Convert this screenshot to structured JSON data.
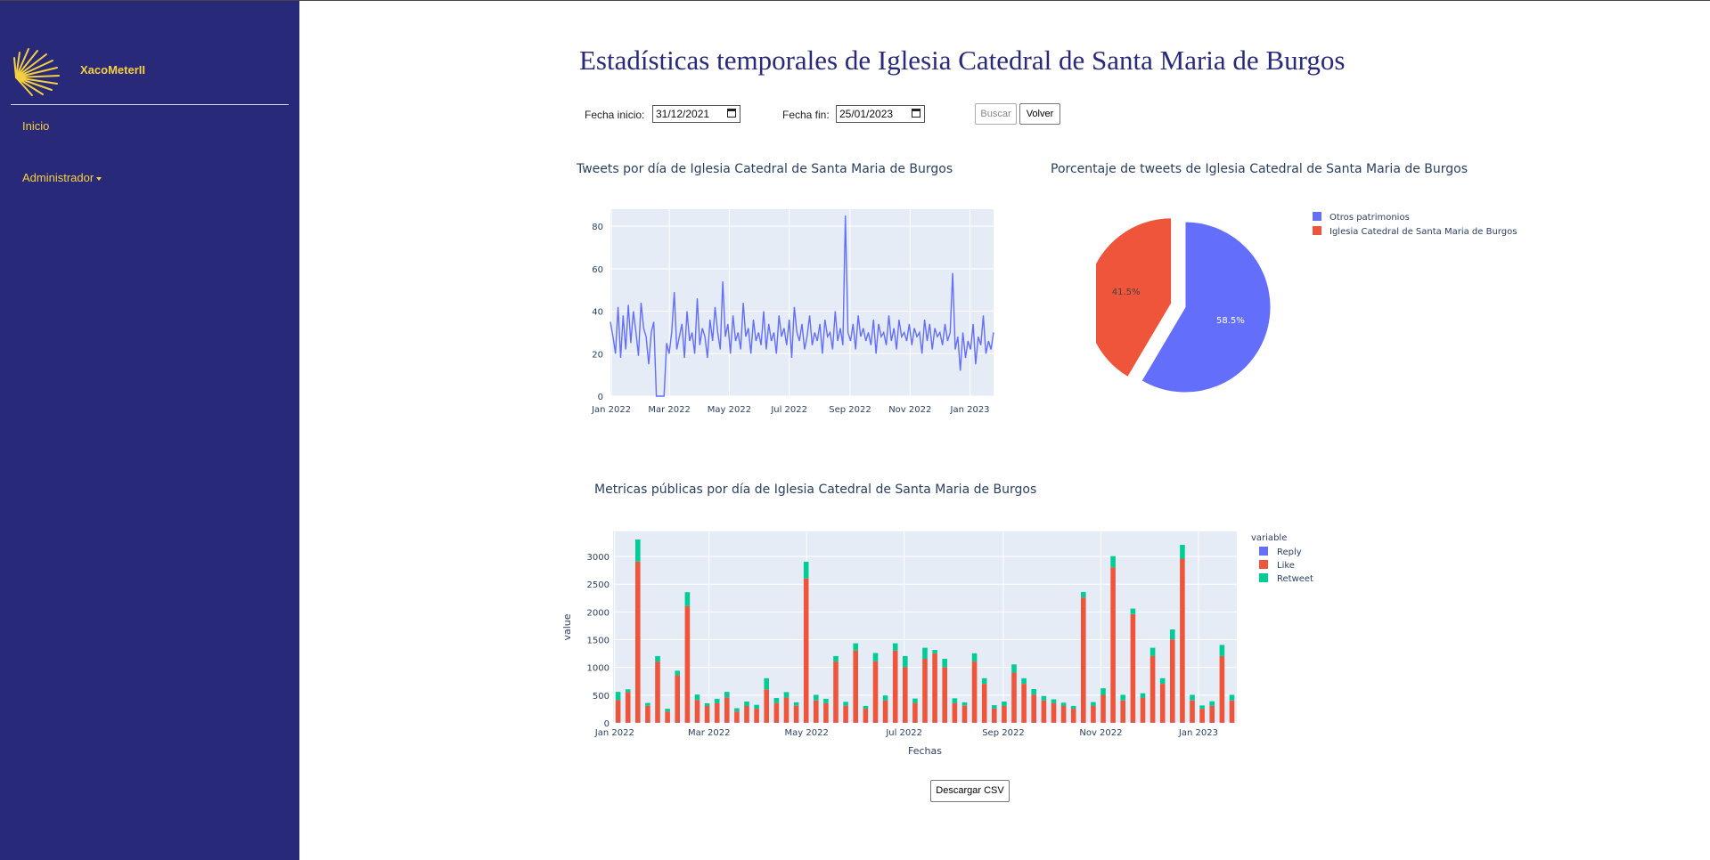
{
  "app": {
    "brand": "XacoMeterII"
  },
  "nav": {
    "inicio": "Inicio",
    "administrador": "Administrador"
  },
  "page": {
    "title": "Estadísticas temporales de Iglesia Catedral de Santa Maria de Burgos"
  },
  "filters": {
    "start_label": "Fecha inicio:",
    "start_value": "31/12/2021",
    "end_label": "Fecha fin:",
    "end_value": "25/01/2023",
    "search_label": "Buscar",
    "back_label": "Volver"
  },
  "download_label": "Descargar CSV",
  "colors": {
    "sidebar": "#29297a",
    "accent": "#f4d03f",
    "series_blue": "#636efa",
    "series_red": "#ef553b",
    "series_green": "#00cc96",
    "plot_bg": "#e5ecf6"
  },
  "chart_data": [
    {
      "type": "line",
      "title": "Tweets por día de Iglesia Catedral de Santa Maria de Burgos",
      "x_range": [
        "2021-12-31",
        "2023-01-25"
      ],
      "x_ticks": [
        "Jan 2022",
        "Mar 2022",
        "May 2022",
        "Jul 2022",
        "Sep 2022",
        "Nov 2022",
        "Jan 2023"
      ],
      "y_ticks": [
        0,
        20,
        40,
        60,
        80
      ],
      "ylim": [
        0,
        88
      ],
      "grid": true,
      "series": [
        {
          "values": [
            35,
            28,
            20,
            42,
            18,
            38,
            22,
            43,
            25,
            40,
            30,
            19,
            44,
            32,
            28,
            15,
            30,
            35,
            0,
            0,
            0,
            0,
            25,
            20,
            30,
            49,
            22,
            28,
            34,
            18,
            40,
            26,
            30,
            20,
            46,
            24,
            32,
            28,
            18,
            36,
            26,
            42,
            30,
            22,
            54,
            28,
            34,
            20,
            38,
            26,
            30,
            22,
            44,
            28,
            32,
            20,
            36,
            26,
            30,
            24,
            40,
            22,
            34,
            26,
            30,
            20,
            38,
            28,
            32,
            24,
            36,
            18,
            42,
            30,
            26,
            34,
            22,
            28,
            38,
            24,
            30,
            26,
            34,
            20,
            36,
            28,
            30,
            22,
            40,
            26,
            32,
            24,
            85,
            30,
            26,
            34,
            22,
            38,
            28,
            32,
            26,
            30,
            24,
            36,
            20,
            34,
            28,
            30,
            24,
            38,
            26,
            32,
            22,
            36,
            28,
            30,
            26,
            34,
            24,
            32,
            28,
            30,
            20,
            36,
            26,
            34,
            22,
            32,
            28,
            30,
            24,
            34,
            26,
            30,
            58,
            22,
            28,
            12,
            30,
            18,
            26,
            22,
            34,
            15,
            28,
            24,
            38,
            20,
            26,
            22,
            30
          ]
        }
      ]
    },
    {
      "type": "pie",
      "title": "Porcentaje de tweets de Iglesia Catedral de Santa Maria de Burgos",
      "legend": "top-right",
      "slices": [
        {
          "label": "Otros patrimonios",
          "value": 58.5,
          "text": "58.5%"
        },
        {
          "label": "Iglesia Catedral de Santa Maria de Burgos",
          "value": 41.5,
          "text": "41.5%"
        }
      ]
    },
    {
      "type": "bar",
      "title": "Metricas públicas por día de Iglesia Catedral de Santa Maria de Burgos",
      "xlabel": "Fechas",
      "ylabel": "value",
      "legend_title": "variable",
      "legend": "top-right",
      "stacked": true,
      "x_range": [
        "2021-12-31",
        "2023-01-25"
      ],
      "x_ticks": [
        "Jan 2022",
        "Mar 2022",
        "May 2022",
        "Jul 2022",
        "Sep 2022",
        "Nov 2022",
        "Jan 2023"
      ],
      "y_ticks": [
        0,
        500,
        1000,
        1500,
        2000,
        2500,
        3000
      ],
      "ylim": [
        0,
        3450
      ],
      "grid": true,
      "series": [
        {
          "name": "Reply",
          "values": [
            10,
            5,
            5,
            10,
            5,
            5,
            10,
            5,
            10,
            5,
            5,
            10,
            5,
            5,
            5,
            5,
            10,
            5,
            10,
            5,
            5,
            5,
            5,
            10,
            5,
            5,
            10,
            5,
            5,
            5,
            10,
            5,
            5,
            5,
            5,
            10,
            5,
            5,
            10,
            5,
            5,
            5,
            10,
            5,
            5,
            5,
            5,
            10,
            5,
            5,
            5,
            5,
            10,
            5,
            5,
            5,
            5,
            10,
            5,
            5,
            10,
            5,
            5
          ]
        },
        {
          "name": "Like",
          "values": [
            400,
            550,
            2900,
            300,
            1100,
            200,
            850,
            2100,
            400,
            300,
            350,
            450,
            200,
            300,
            250,
            600,
            350,
            450,
            300,
            2600,
            400,
            350,
            1100,
            300,
            1300,
            250,
            1100,
            400,
            1300,
            1000,
            350,
            1150,
            1250,
            1000,
            350,
            300,
            1100,
            700,
            250,
            300,
            900,
            700,
            500,
            400,
            350,
            300,
            250,
            2250,
            300,
            500,
            2800,
            400,
            1950,
            450,
            1200,
            700,
            1500,
            2950,
            400,
            250,
            300,
            1200,
            400
          ]
        },
        {
          "name": "Retweet",
          "values": [
            150,
            50,
            400,
            50,
            100,
            50,
            80,
            250,
            100,
            50,
            80,
            100,
            60,
            80,
            70,
            200,
            90,
            100,
            60,
            300,
            100,
            80,
            100,
            70,
            130,
            50,
            150,
            90,
            130,
            200,
            80,
            200,
            60,
            150,
            90,
            60,
            150,
            100,
            60,
            80,
            150,
            100,
            100,
            80,
            70,
            60,
            50,
            100,
            70,
            120,
            200,
            100,
            100,
            80,
            150,
            100,
            180,
            250,
            100,
            60,
            80,
            200,
            100
          ]
        }
      ]
    }
  ]
}
